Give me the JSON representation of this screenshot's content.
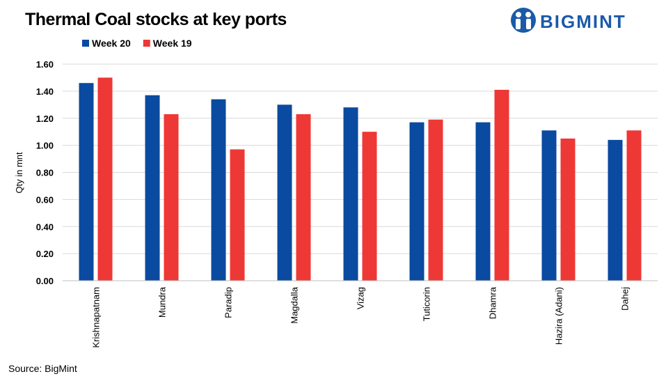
{
  "chart_data": {
    "type": "bar",
    "title": "Thermal Coal stocks at key ports",
    "y_label": "Qty in mnt",
    "source": "Source: BigMint",
    "categories": [
      "Krishnapatnam",
      "Mundra",
      "Paradip",
      "Magdalla",
      "Vizag",
      "Tuticorin",
      "Dhamra",
      "Hazira (Adani)",
      "Dahej"
    ],
    "series": [
      {
        "name": "Week 20",
        "color": "#0a4aa0",
        "values": [
          1.46,
          1.37,
          1.34,
          1.3,
          1.28,
          1.17,
          1.17,
          1.11,
          1.04
        ]
      },
      {
        "name": "Week 19",
        "color": "#ee3835",
        "values": [
          1.5,
          1.23,
          0.97,
          1.23,
          1.1,
          1.19,
          1.41,
          1.05,
          1.11
        ]
      }
    ],
    "ylim": [
      0,
      1.6
    ],
    "yticks": [
      {
        "value": 0,
        "label": "0.00"
      },
      {
        "value": 0.2,
        "label": "0.20"
      },
      {
        "value": 0.4,
        "label": "0.40"
      },
      {
        "value": 0.6,
        "label": "0.60"
      },
      {
        "value": 0.8,
        "label": "0.80"
      },
      {
        "value": 1,
        "label": "1.00"
      },
      {
        "value": 1.2,
        "label": "1.20"
      },
      {
        "value": 1.4,
        "label": "1.40"
      },
      {
        "value": 1.6,
        "label": "1.60"
      }
    ],
    "grid": true,
    "legend": "top-left"
  },
  "logo": "BIGMINT"
}
